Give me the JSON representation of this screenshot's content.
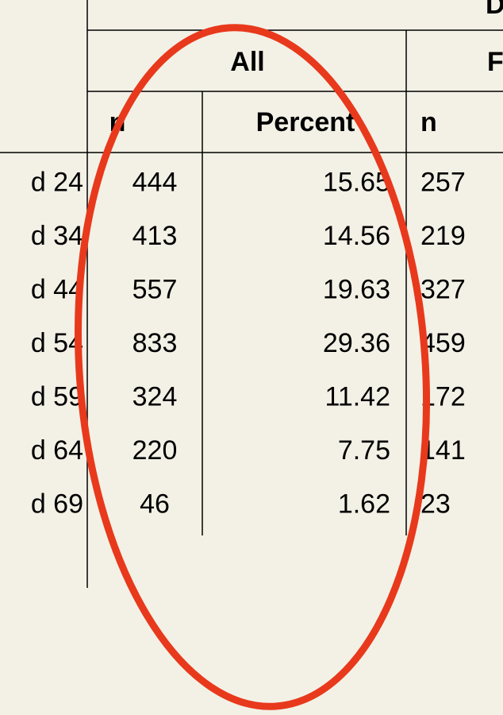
{
  "table": {
    "spanner": "D",
    "groups": [
      "All",
      "F"
    ],
    "columns": [
      "n",
      "Percent",
      "n"
    ],
    "rows": [
      [
        "d 24",
        "444",
        "15.65",
        "257"
      ],
      [
        "d 34",
        "413",
        "14.56",
        "219"
      ],
      [
        "d 44",
        "557",
        "19.63",
        "327"
      ],
      [
        "d 54",
        "833",
        "29.36",
        "459"
      ],
      [
        "d 59",
        "324",
        "11.42",
        "172"
      ],
      [
        "d 64",
        "220",
        "7.75",
        "141"
      ],
      [
        "d 69",
        "46",
        "1.62",
        "23"
      ]
    ]
  }
}
